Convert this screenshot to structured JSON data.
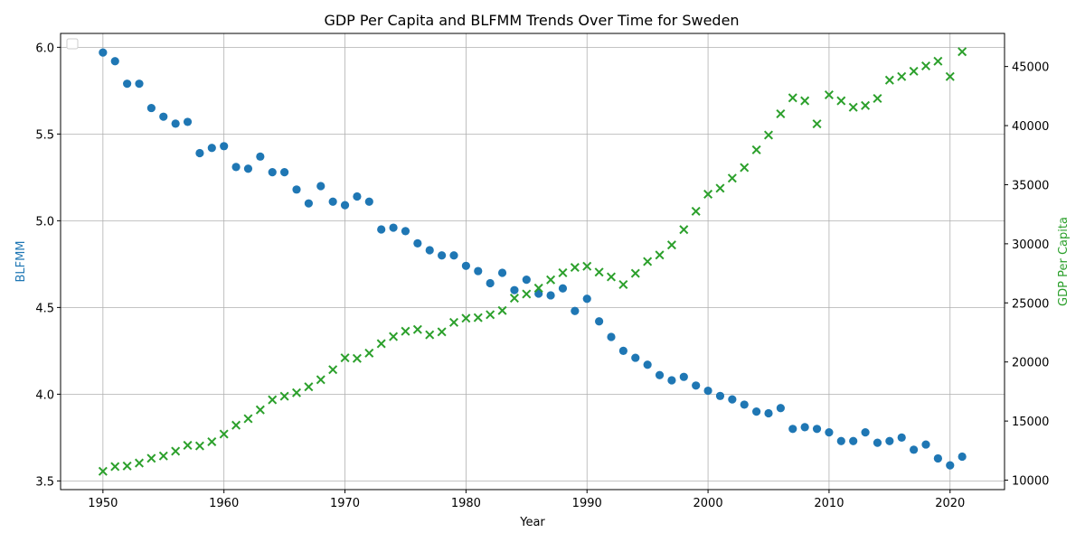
{
  "chart_data": {
    "type": "scatter",
    "title": "GDP Per Capita and BLFMM Trends Over Time for Sweden",
    "xlabel": "Year",
    "ylabel_left": "BLFMM",
    "ylabel_right": "GDP Per Capita",
    "xlim": [
      1946.5,
      2024.5
    ],
    "ylim_left": [
      3.45,
      6.08
    ],
    "ylim_right": [
      9200,
      47800
    ],
    "x_ticks": [
      1950,
      1960,
      1970,
      1980,
      1990,
      2000,
      2010,
      2020
    ],
    "y_left_ticks": [
      "3.5",
      "4.0",
      "4.5",
      "5.0",
      "5.5",
      "6.0"
    ],
    "y_right_ticks": [
      "10000",
      "15000",
      "20000",
      "25000",
      "30000",
      "35000",
      "40000",
      "45000"
    ],
    "grid": true,
    "legend": "upper-left (empty)",
    "colors": {
      "blfmm": "#1f77b4",
      "gdp": "#2ca02c"
    },
    "x": [
      1950,
      1951,
      1952,
      1953,
      1954,
      1955,
      1956,
      1957,
      1958,
      1959,
      1960,
      1961,
      1962,
      1963,
      1964,
      1965,
      1966,
      1967,
      1968,
      1969,
      1970,
      1971,
      1972,
      1973,
      1974,
      1975,
      1976,
      1977,
      1978,
      1979,
      1980,
      1981,
      1982,
      1983,
      1984,
      1985,
      1986,
      1987,
      1988,
      1989,
      1990,
      1991,
      1992,
      1993,
      1994,
      1995,
      1996,
      1997,
      1998,
      1999,
      2000,
      2001,
      2002,
      2003,
      2004,
      2005,
      2006,
      2007,
      2008,
      2009,
      2010,
      2011,
      2012,
      2013,
      2014,
      2015,
      2016,
      2017,
      2018,
      2019,
      2020,
      2021
    ],
    "series": [
      {
        "name": "BLFMM",
        "axis": "left",
        "marker": "circle",
        "values": [
          5.97,
          5.92,
          5.79,
          5.79,
          5.65,
          5.6,
          5.56,
          5.57,
          5.39,
          5.42,
          5.43,
          5.31,
          5.3,
          5.37,
          5.28,
          5.28,
          5.18,
          5.1,
          5.2,
          5.11,
          5.09,
          5.14,
          5.11,
          4.95,
          4.96,
          4.94,
          4.87,
          4.83,
          4.8,
          4.8,
          4.74,
          4.71,
          4.64,
          4.7,
          4.6,
          4.66,
          4.58,
          4.57,
          4.61,
          4.48,
          4.55,
          4.42,
          4.33,
          4.25,
          4.21,
          4.17,
          4.11,
          4.08,
          4.1,
          4.05,
          4.02,
          3.99,
          3.97,
          3.94,
          3.9,
          3.89,
          3.92,
          3.8,
          3.81,
          3.8,
          3.78,
          3.73,
          3.73,
          3.78,
          3.72,
          3.73,
          3.75,
          3.68,
          3.71,
          3.63,
          3.59,
          3.64
        ]
      },
      {
        "name": "GDP Per Capita",
        "axis": "right",
        "marker": "x",
        "values": [
          10750,
          11150,
          11200,
          11450,
          11850,
          12050,
          12450,
          12950,
          12900,
          13250,
          13900,
          14650,
          15200,
          15950,
          16800,
          17100,
          17400,
          17900,
          18500,
          19350,
          20350,
          20300,
          20750,
          21550,
          22150,
          22600,
          22750,
          22300,
          22550,
          23350,
          23700,
          23750,
          24000,
          24350,
          25400,
          25750,
          26250,
          26950,
          27550,
          28000,
          28100,
          27600,
          27200,
          26550,
          27500,
          28500,
          29050,
          29900,
          31200,
          32750,
          34200,
          34700,
          35550,
          36450,
          37950,
          39200,
          41000,
          42350,
          42100,
          40150,
          42600,
          42100,
          41550,
          41700,
          42300,
          43850,
          44150,
          44600,
          45050,
          45450,
          44150,
          46250
        ]
      }
    ]
  }
}
